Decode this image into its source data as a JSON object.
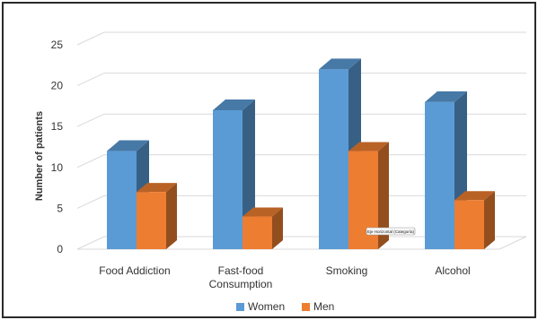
{
  "chart_data": {
    "type": "bar",
    "style": "3d-clustered-column",
    "ylabel": "Number of patients",
    "xlabel": "",
    "ylim": [
      0,
      25
    ],
    "yticks": [
      0,
      5,
      10,
      15,
      20,
      25
    ],
    "grid": true,
    "legend_position": "bottom",
    "categories": [
      [
        "Food Addiction"
      ],
      [
        "Fast-food",
        "Consumption"
      ],
      [
        "Smoking"
      ],
      [
        "Alcohol"
      ]
    ],
    "series": [
      {
        "name": "Women",
        "values": [
          12,
          17,
          22,
          18
        ],
        "color": "#5b9bd5"
      },
      {
        "name": "Men",
        "values": [
          7,
          4,
          12,
          6
        ],
        "color": "#ed7d31"
      }
    ],
    "tooltip": "Eje Horizontal (Categoría)"
  }
}
